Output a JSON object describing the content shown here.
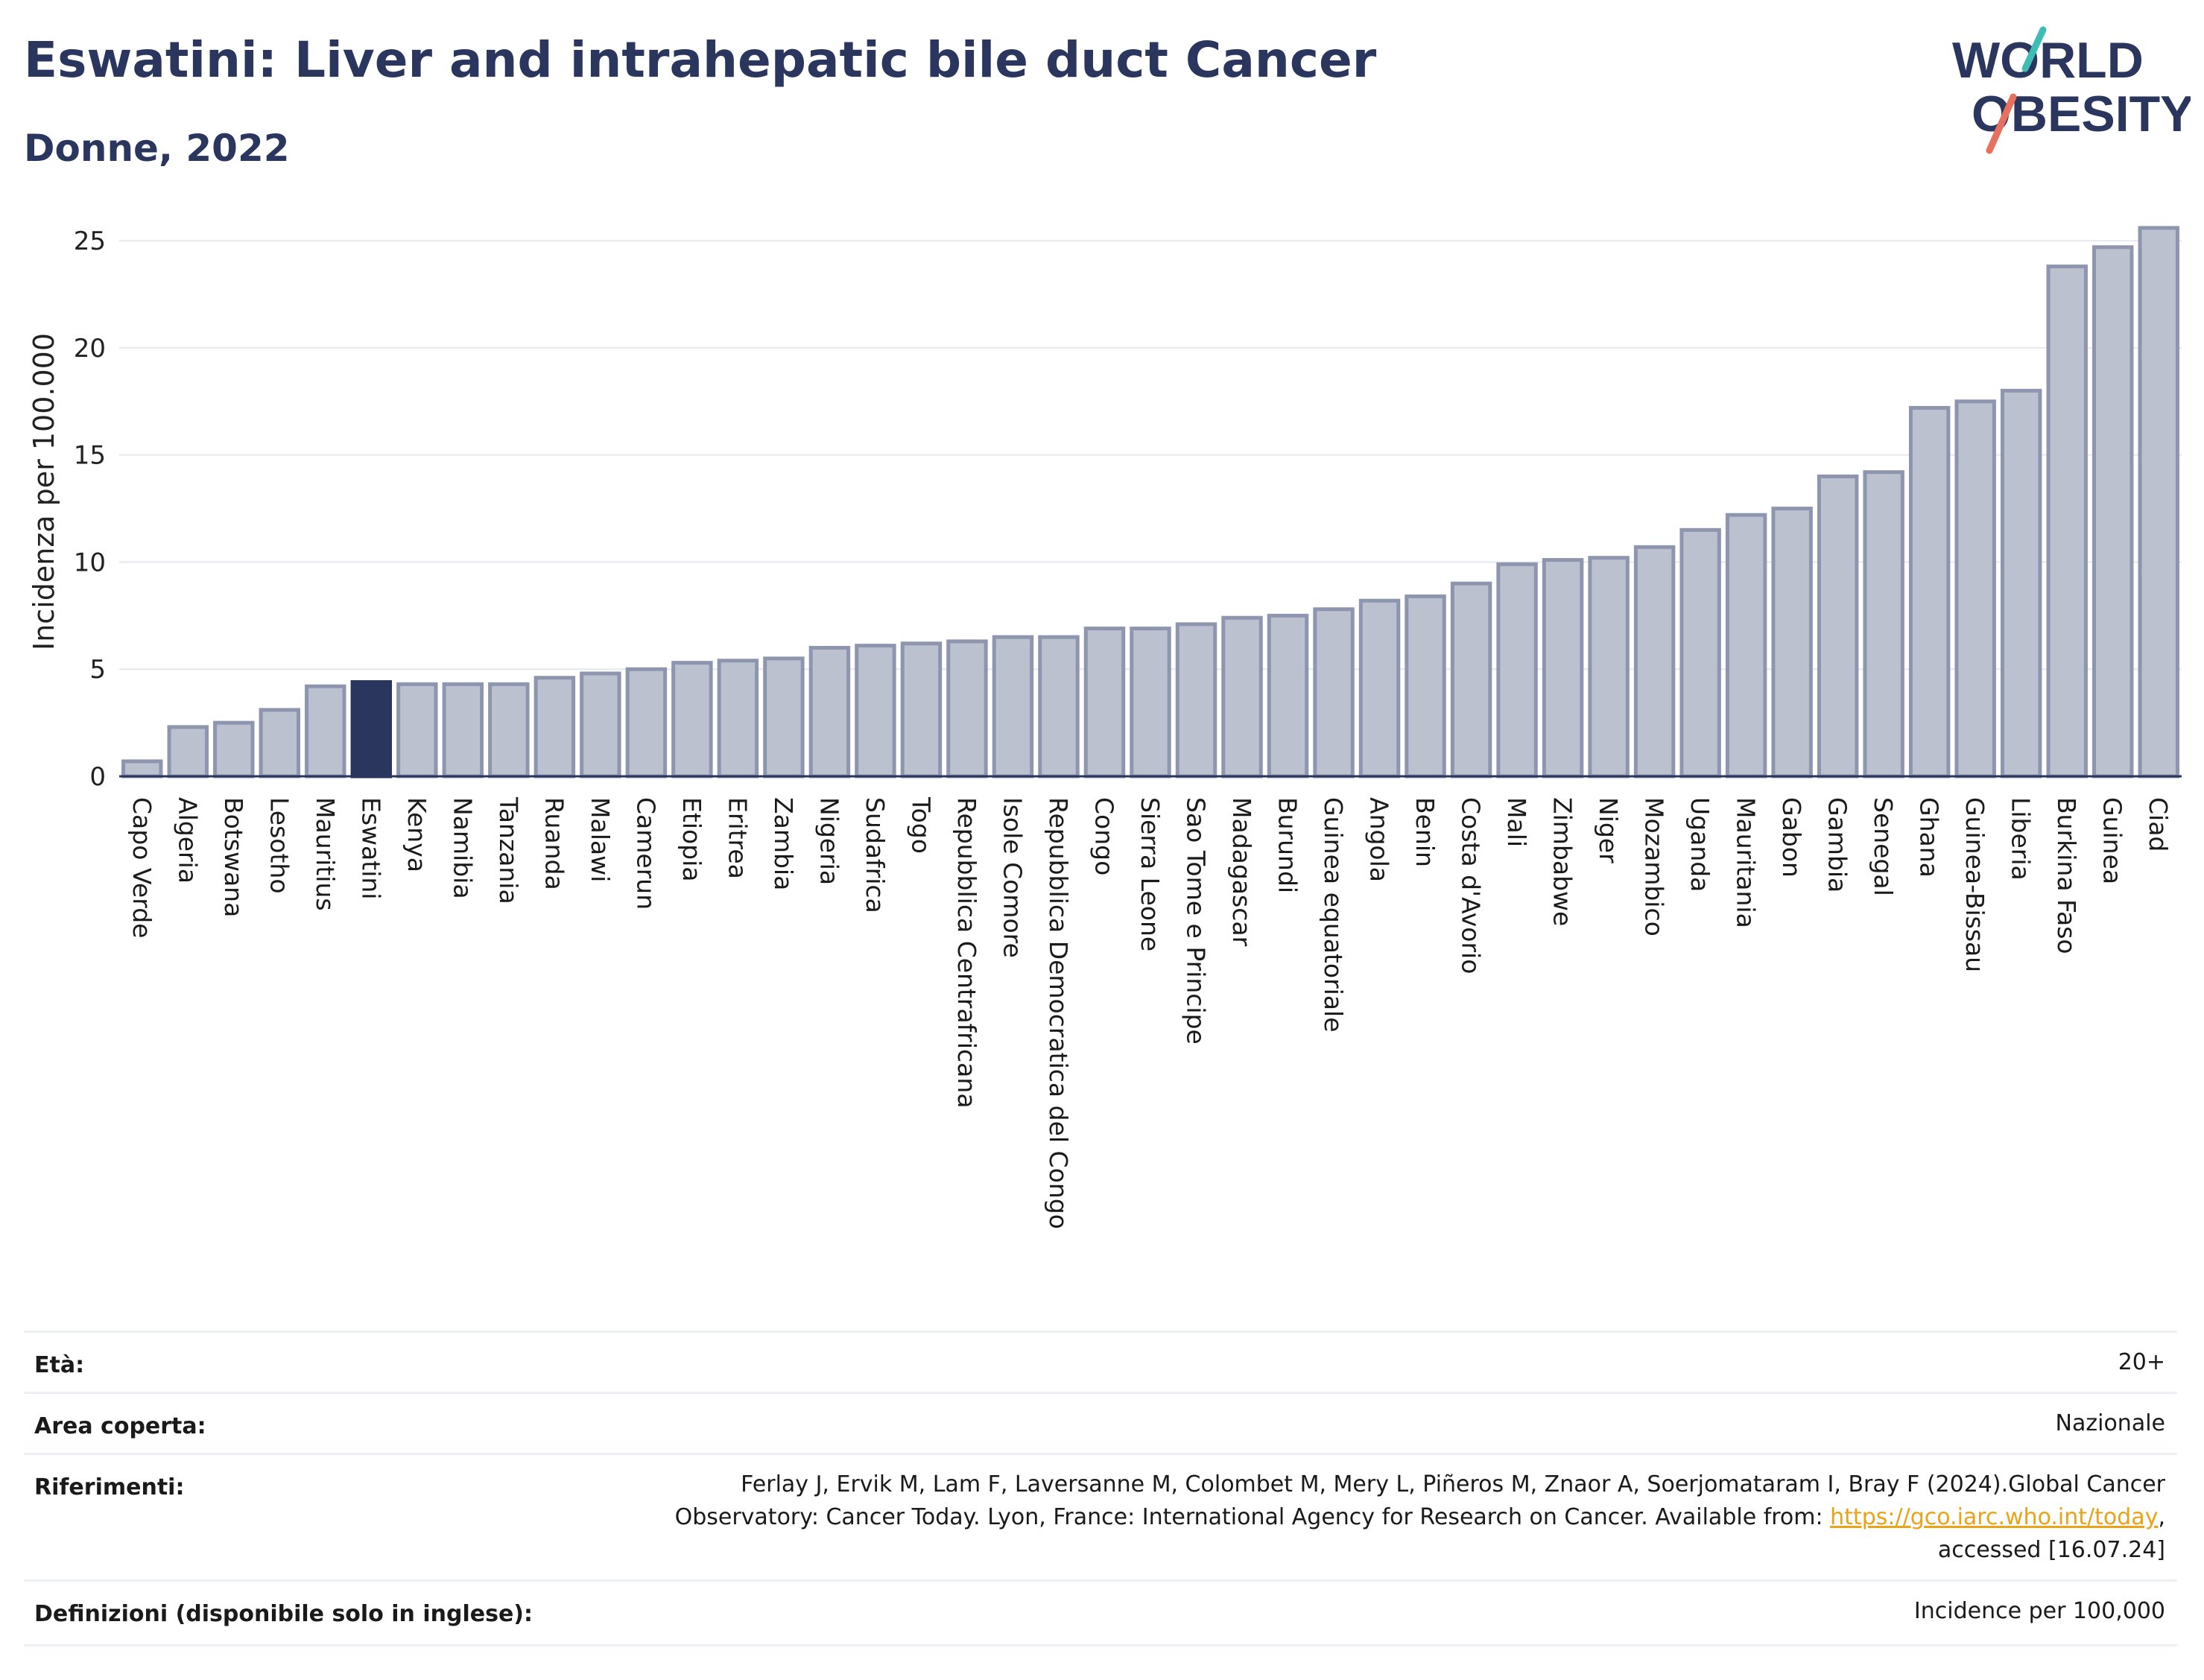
{
  "header": {
    "title": "Eswatini: Liver and intrahepatic bile duct Cancer",
    "subtitle": "Donne, 2022",
    "logo_line1": "WORLD",
    "logo_line2": "OBESITY"
  },
  "colors": {
    "bar": "#bcc1d0",
    "bar_border": "#8e95ae",
    "highlight": "#2b365e",
    "axis": "#2b365e",
    "grid": "#e6e8ee",
    "logo_teal": "#3ebdb5",
    "logo_coral": "#e8705f"
  },
  "chart_data": {
    "type": "bar",
    "title": "Eswatini: Liver and intrahepatic bile duct Cancer",
    "subtitle": "Donne, 2022",
    "xlabel": "",
    "ylabel": "Incidenza per 100.000",
    "ylim": [
      0,
      26.5
    ],
    "yticks": [
      0,
      5,
      10,
      15,
      20,
      25
    ],
    "grid": true,
    "highlight": "Eswatini",
    "categories": [
      "Capo Verde",
      "Algeria",
      "Botswana",
      "Lesotho",
      "Mauritius",
      "Eswatini",
      "Kenya",
      "Namibia",
      "Tanzania",
      "Ruanda",
      "Malawi",
      "Camerun",
      "Etiopia",
      "Eritrea",
      "Zambia",
      "Nigeria",
      "Sudafrica",
      "Togo",
      "Repubblica Centrafricana",
      "Isole Comore",
      "Repubblica Democratica del Congo",
      "Congo",
      "Sierra Leone",
      "Sao Tome e Principe",
      "Madagascar",
      "Burundi",
      "Guinea equatoriale",
      "Angola",
      "Benin",
      "Costa d'Avorio",
      "Mali",
      "Zimbabwe",
      "Niger",
      "Mozambico",
      "Uganda",
      "Mauritania",
      "Gabon",
      "Gambia",
      "Senegal",
      "Ghana",
      "Guinea-Bissau",
      "Liberia",
      "Burkina Faso",
      "Guinea",
      "Ciad"
    ],
    "values": [
      0.7,
      2.3,
      2.5,
      3.1,
      4.2,
      4.4,
      4.3,
      4.3,
      4.3,
      4.6,
      4.8,
      5.0,
      5.3,
      5.4,
      5.5,
      6.0,
      6.1,
      6.2,
      6.3,
      6.5,
      6.5,
      6.9,
      6.9,
      7.1,
      7.4,
      7.5,
      7.8,
      8.2,
      8.4,
      9.0,
      9.9,
      10.1,
      10.2,
      10.7,
      11.5,
      12.2,
      12.5,
      14.0,
      14.2,
      17.2,
      17.5,
      18.0,
      23.8,
      24.7,
      25.6
    ]
  },
  "info": {
    "rows": [
      {
        "label": "Età:",
        "value": "20+"
      },
      {
        "label": "Area coperta:",
        "value": "Nazionale"
      },
      {
        "label": "Riferimenti:",
        "value_line1": "Ferlay J, Ervik M, Lam F, Laversanne M, Colombet M, Mery L, Piñeros M, Znaor A, Soerjomataram I, Bray F (2024).Global Cancer",
        "value_line2_pre": "Observatory: Cancer Today. Lyon, France: International Agency for Research on Cancer. Available from: ",
        "link": "https://gco.iarc.who.int/today",
        "value_line2_post": ",",
        "value_line3": "accessed [16.07.24]"
      },
      {
        "label": "Definizioni (disponibile solo in inglese):",
        "value": "Incidence per 100,000"
      }
    ]
  }
}
